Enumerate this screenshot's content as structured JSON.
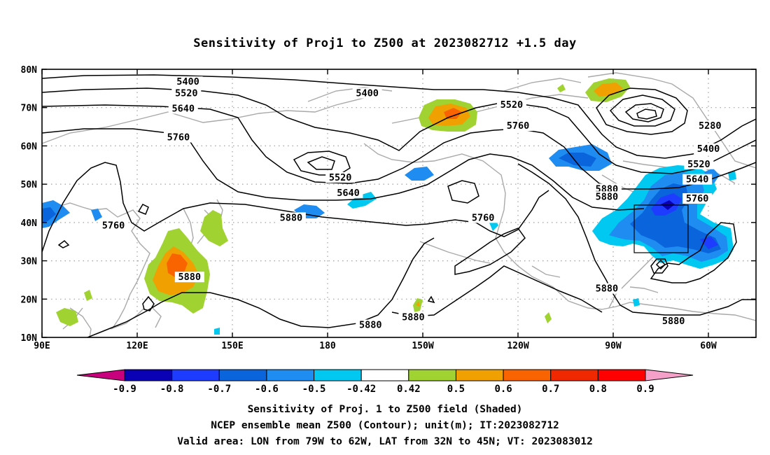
{
  "chart_data": {
    "type": "heatmap",
    "title": "Sensitivity of Proj1 to Z500 at 2023082712 +1.5 day",
    "x_ticks": [
      "90E",
      "120E",
      "150E",
      "180",
      "150W",
      "120W",
      "90W",
      "60W"
    ],
    "y_ticks": [
      "10N",
      "20N",
      "30N",
      "40N",
      "50N",
      "60N",
      "70N",
      "80N"
    ],
    "xlim": [
      90,
      315
    ],
    "ylim": [
      10,
      80
    ],
    "colorbar": {
      "labels": [
        "-0.9",
        "-0.8",
        "-0.7",
        "-0.6",
        "-0.5",
        "-0.42",
        "0.42",
        "0.5",
        "0.6",
        "0.7",
        "0.8",
        "0.9"
      ],
      "colors": [
        "#c8007d",
        "#0a00b4",
        "#1e3cff",
        "#0a64dc",
        "#1e8cf0",
        "#00c8f0",
        "#ffffff",
        "#a0d232",
        "#f0a000",
        "#fa6400",
        "#f02800",
        "#ff0000",
        "#f5a0c8"
      ]
    },
    "contour_labels": [
      {
        "text": "5400",
        "lon": 136,
        "lat": 76.5
      },
      {
        "text": "5520",
        "lon": 135.5,
        "lat": 73.5
      },
      {
        "text": "5640",
        "lon": 134.5,
        "lat": 69.5
      },
      {
        "text": "5760",
        "lon": 133,
        "lat": 62
      },
      {
        "text": "5400",
        "lon": 192.5,
        "lat": 73.5
      },
      {
        "text": "5520",
        "lon": 238,
        "lat": 70.5
      },
      {
        "text": "5760",
        "lon": 240,
        "lat": 65
      },
      {
        "text": "5280",
        "lon": 300.5,
        "lat": 65
      },
      {
        "text": "5400",
        "lon": 300,
        "lat": 59
      },
      {
        "text": "5520",
        "lon": 297,
        "lat": 55
      },
      {
        "text": "5640",
        "lon": 296.5,
        "lat": 51
      },
      {
        "text": "5760",
        "lon": 296.5,
        "lat": 46
      },
      {
        "text": "5520",
        "lon": 184,
        "lat": 51.5
      },
      {
        "text": "5640",
        "lon": 186.5,
        "lat": 47.5
      },
      {
        "text": "5760",
        "lon": 112.5,
        "lat": 39
      },
      {
        "text": "5880",
        "lon": 168.5,
        "lat": 41
      },
      {
        "text": "5760",
        "lon": 229,
        "lat": 41
      },
      {
        "text": "5880",
        "lon": 268,
        "lat": 48.5
      },
      {
        "text": "5880",
        "lon": 268,
        "lat": 46.5
      },
      {
        "text": "5880",
        "lon": 136.5,
        "lat": 25.5
      },
      {
        "text": "5880",
        "lon": 193.5,
        "lat": 13
      },
      {
        "text": "5880",
        "lon": 207,
        "lat": 15
      },
      {
        "text": "5880",
        "lon": 268,
        "lat": 22.5
      },
      {
        "text": "5880",
        "lon": 289,
        "lat": 14
      }
    ],
    "valid_box": {
      "lon": [
        281,
        298
      ],
      "lat": [
        32,
        45
      ]
    },
    "shaded_regions": [
      {
        "cls": "pos",
        "level": 0.5,
        "lon": 228,
        "lat": 68.5
      },
      {
        "cls": "pos",
        "level": 0.6,
        "lon": 228,
        "lat": 69.5
      },
      {
        "cls": "pos",
        "level": 0.5,
        "lon": 295,
        "lat": 73
      },
      {
        "cls": "pos",
        "level": 0.6,
        "lon": 296,
        "lat": 73.5
      },
      {
        "cls": "pos",
        "level": 0.5,
        "lon": 134,
        "lat": 27
      },
      {
        "cls": "pos",
        "level": 0.6,
        "lon": 133,
        "lat": 27
      },
      {
        "cls": "pos",
        "level": 0.7,
        "lon": 134,
        "lat": 30
      },
      {
        "cls": "pos",
        "level": 0.5,
        "lon": 147,
        "lat": 38
      },
      {
        "cls": "pos",
        "level": 0.5,
        "lon": 121,
        "lat": 17
      },
      {
        "cls": "neg",
        "level": -0.5,
        "lon": 290,
        "lat": 40
      },
      {
        "cls": "neg",
        "level": -0.6,
        "lon": 297,
        "lat": 42
      },
      {
        "cls": "neg",
        "level": -0.7,
        "lon": 306,
        "lat": 35
      },
      {
        "cls": "neg",
        "level": -0.5,
        "lon": 285,
        "lat": 54
      },
      {
        "cls": "neg",
        "level": -0.5,
        "lon": 92,
        "lat": 41
      },
      {
        "cls": "neg",
        "level": -0.5,
        "lon": 186,
        "lat": 44
      }
    ]
  },
  "colorbar_title": "Sensitivity of Proj. 1 to Z500 field (Shaded)",
  "footer": {
    "line2": "NCEP ensemble mean Z500 (Contour); unit(m); IT:2023082712",
    "line3": "Valid area: LON from 79W to 62W, LAT from 32N to 45N; VT: 2023083012"
  }
}
